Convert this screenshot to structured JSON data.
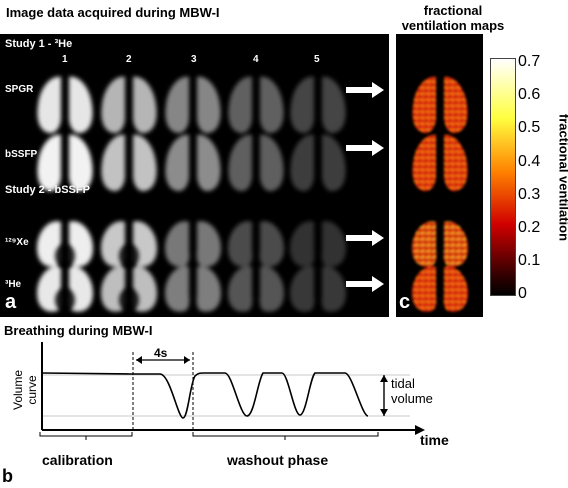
{
  "panel_a": {
    "heading": "Image data acquired during MBW-I",
    "study1_label": "Study 1 - ³He",
    "study2_label": "Study 2 - bSSFP",
    "breath_numbers": [
      "1",
      "2",
      "3",
      "4",
      "5"
    ],
    "row_labels": [
      "SPGR",
      "bSSFP",
      "¹²⁹Xe",
      "³He"
    ],
    "letter": "a"
  },
  "panel_c": {
    "heading_line1": "fractional",
    "heading_line2": "ventilation maps",
    "letter": "c",
    "colorbar_ticks": [
      "0.7",
      "0.6",
      "0.5",
      "0.4",
      "0.3",
      "0.2",
      "0.1",
      "0"
    ],
    "colorbar_label": "fractional ventilation",
    "colors": {
      "high": "#ffffff",
      "mid_high": "#ffff40",
      "mid": "#ff8000",
      "mid_low": "#d00000",
      "low": "#000000"
    }
  },
  "panel_b": {
    "heading": "Breathing during MBW-I",
    "ylabel_line1": "Volume",
    "ylabel_line2": "curve",
    "xlabel": "time",
    "interval_label": "4s",
    "tidal_line1": "tidal",
    "tidal_line2": "volume",
    "phase_calibration": "calibration",
    "phase_washout": "washout phase",
    "letter": "b"
  }
}
